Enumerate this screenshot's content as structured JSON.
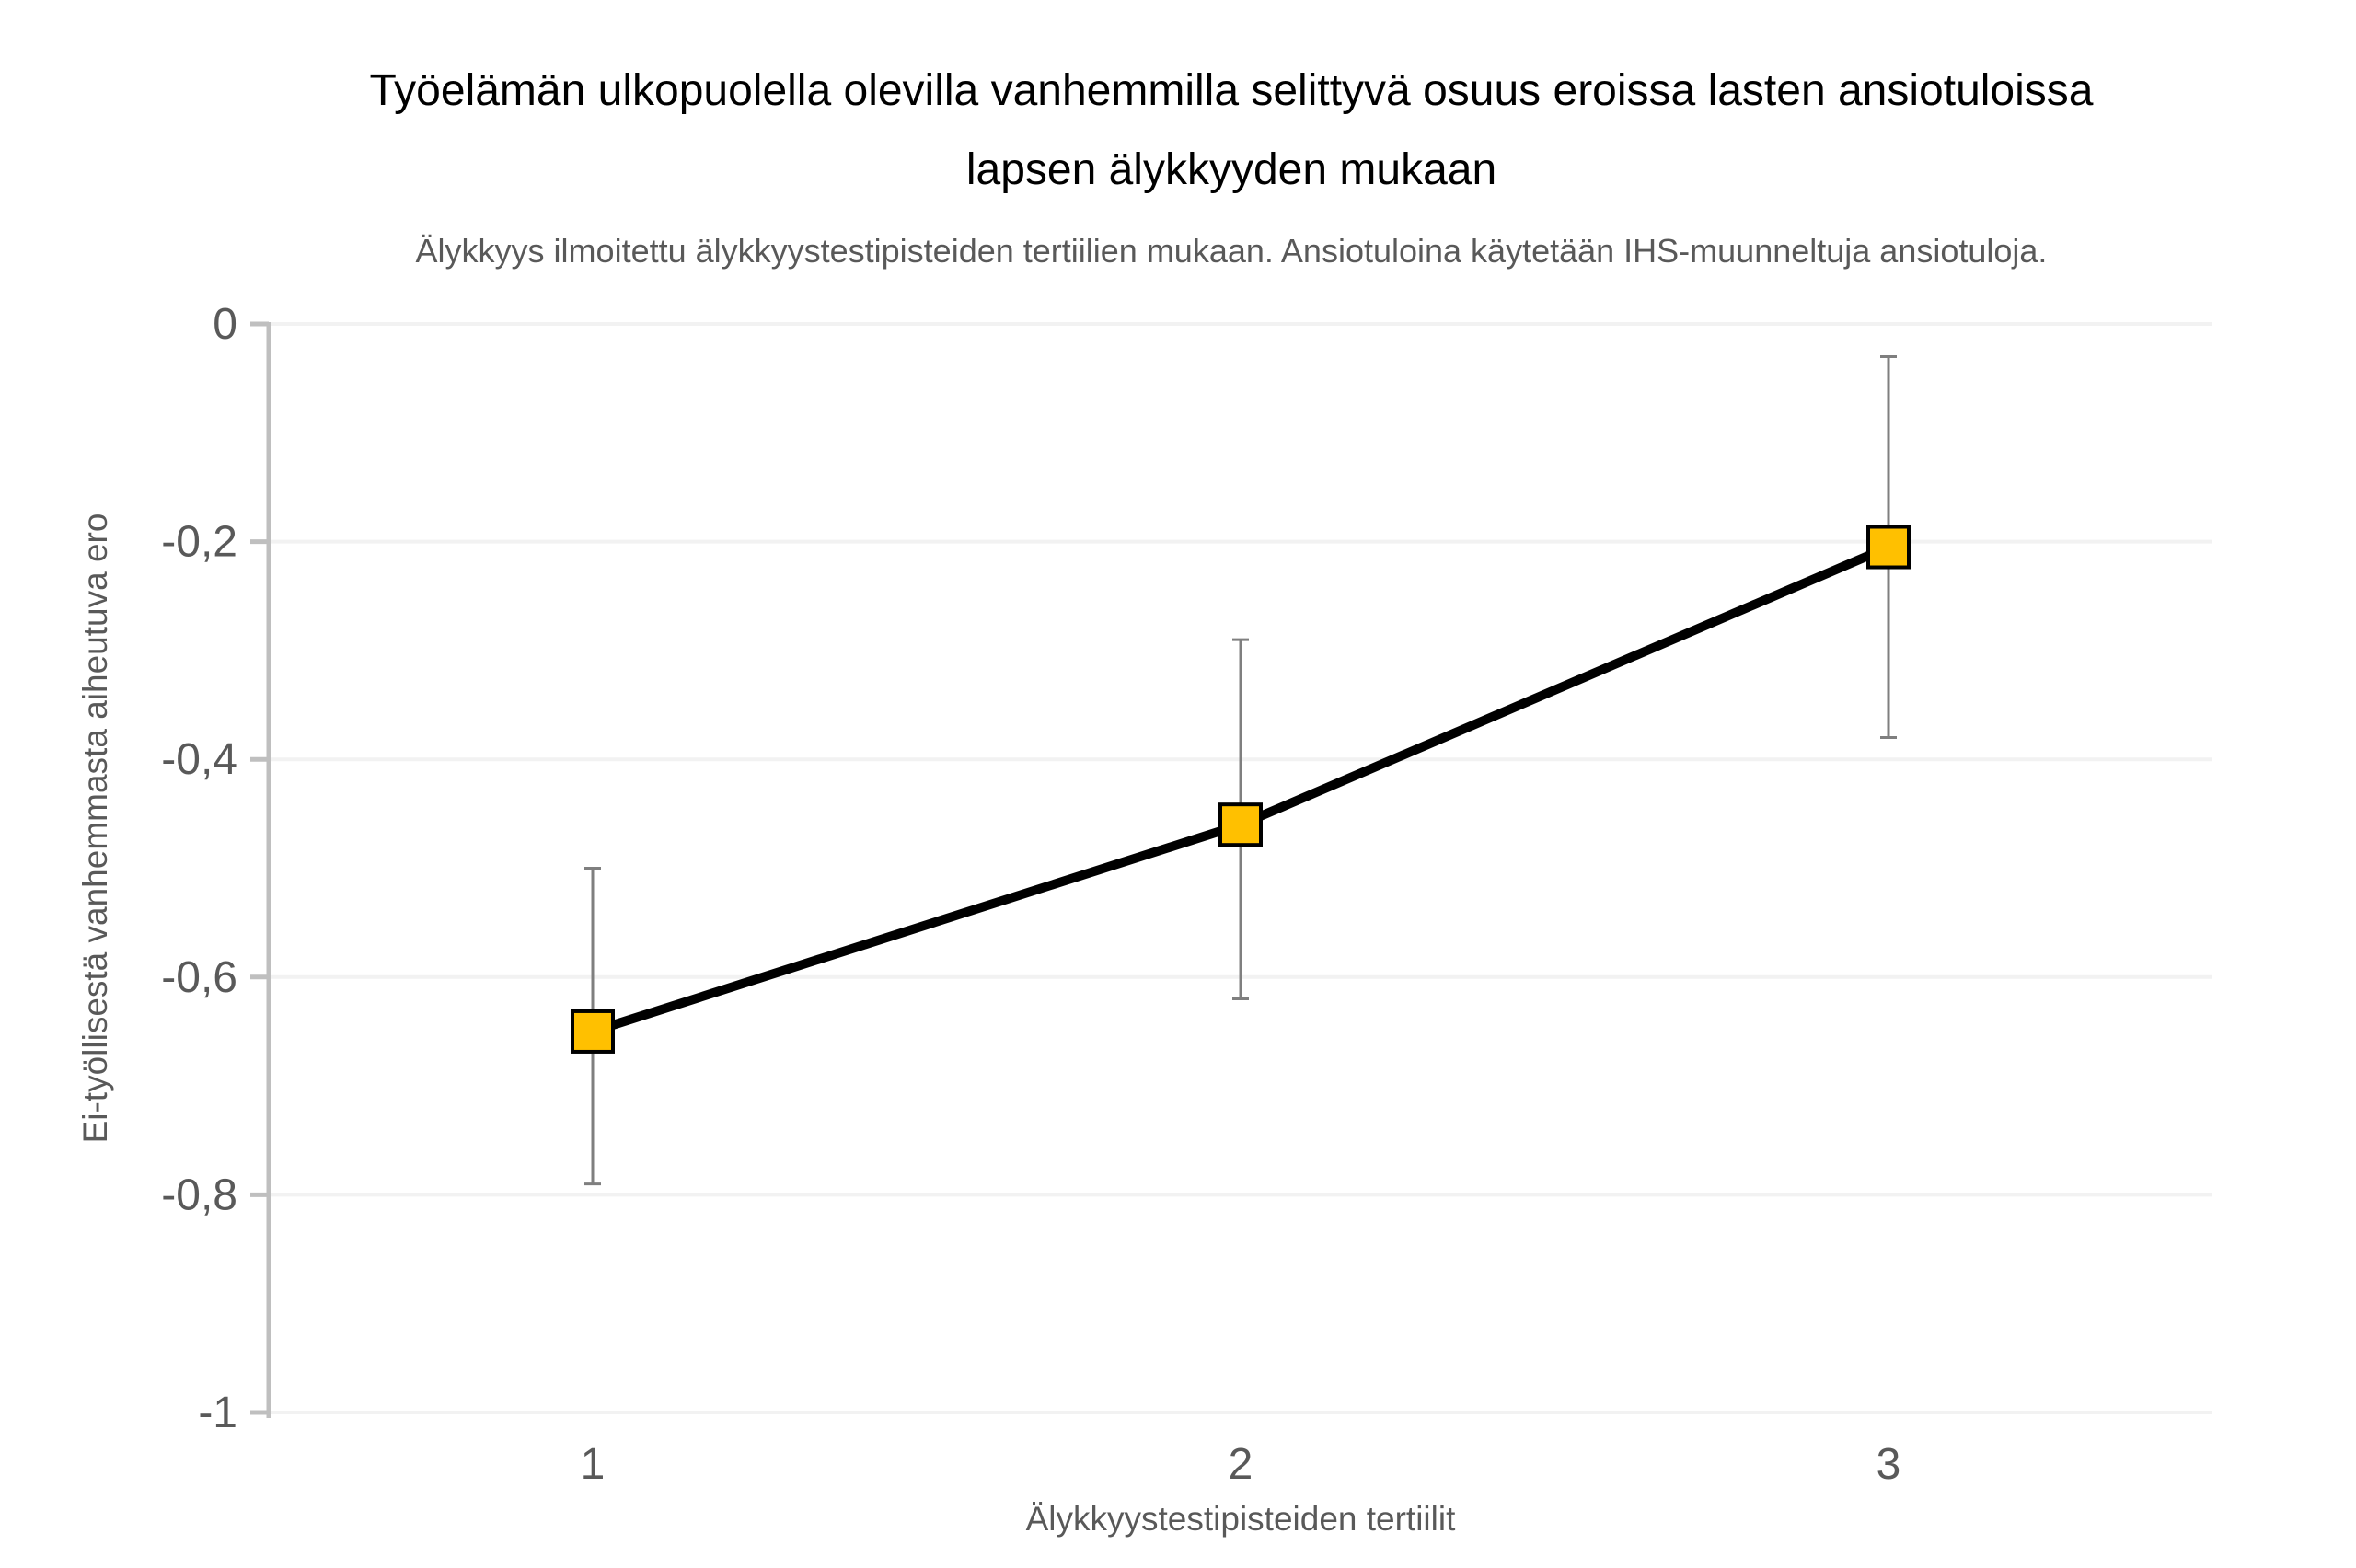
{
  "chart_data": {
    "type": "line",
    "title": "Työelämän ulkopuolella olevilla vanhemmilla selittyvä osuus eroissa lasten ansiotuloissa lapsen älykkyyden mukaan",
    "title_lines": [
      "Työelämän ulkopuolella olevilla vanhemmilla selittyvä osuus eroissa lasten ansiotuloissa",
      "lapsen älykkyyden mukaan"
    ],
    "subtitle": "Älykkyys ilmoitettu älykkyystestipisteiden tertiilien mukaan. Ansiotuloina käytetään IHS-muunneltuja ansiotuloja.",
    "xlabel": "Älykkyystestipisteiden tertiilit",
    "ylabel": "Ei-työllisestä vanhemmasta aiheutuva ero",
    "categories": [
      "1",
      "2",
      "3"
    ],
    "series": [
      {
        "name": "Ei-työllisestä vanhemmasta aiheutuva ero",
        "values": [
          -0.65,
          -0.46,
          -0.205
        ],
        "error_low": [
          -0.79,
          -0.62,
          -0.38
        ],
        "error_high": [
          -0.5,
          -0.29,
          -0.03
        ]
      }
    ],
    "ylim": [
      -1,
      0
    ],
    "yticks": {
      "values": [
        0,
        -0.2,
        -0.4,
        -0.6,
        -0.8,
        -1
      ],
      "labels": [
        "0",
        "-0,2",
        "-0,4",
        "-0,6",
        "-0,8",
        "-1"
      ]
    },
    "grid": "horizontal",
    "legend": "none",
    "marker": "square",
    "colors": {
      "marker_fill": "#FFC000",
      "marker_border": "#000000",
      "line": "#000000",
      "error_bar": "#7F7F7F",
      "axis": "#BFBFBF",
      "gridline": "#F2F2F2",
      "tick_text": "#595959",
      "subtitle_text": "#595959",
      "title_text": "#000000"
    }
  }
}
